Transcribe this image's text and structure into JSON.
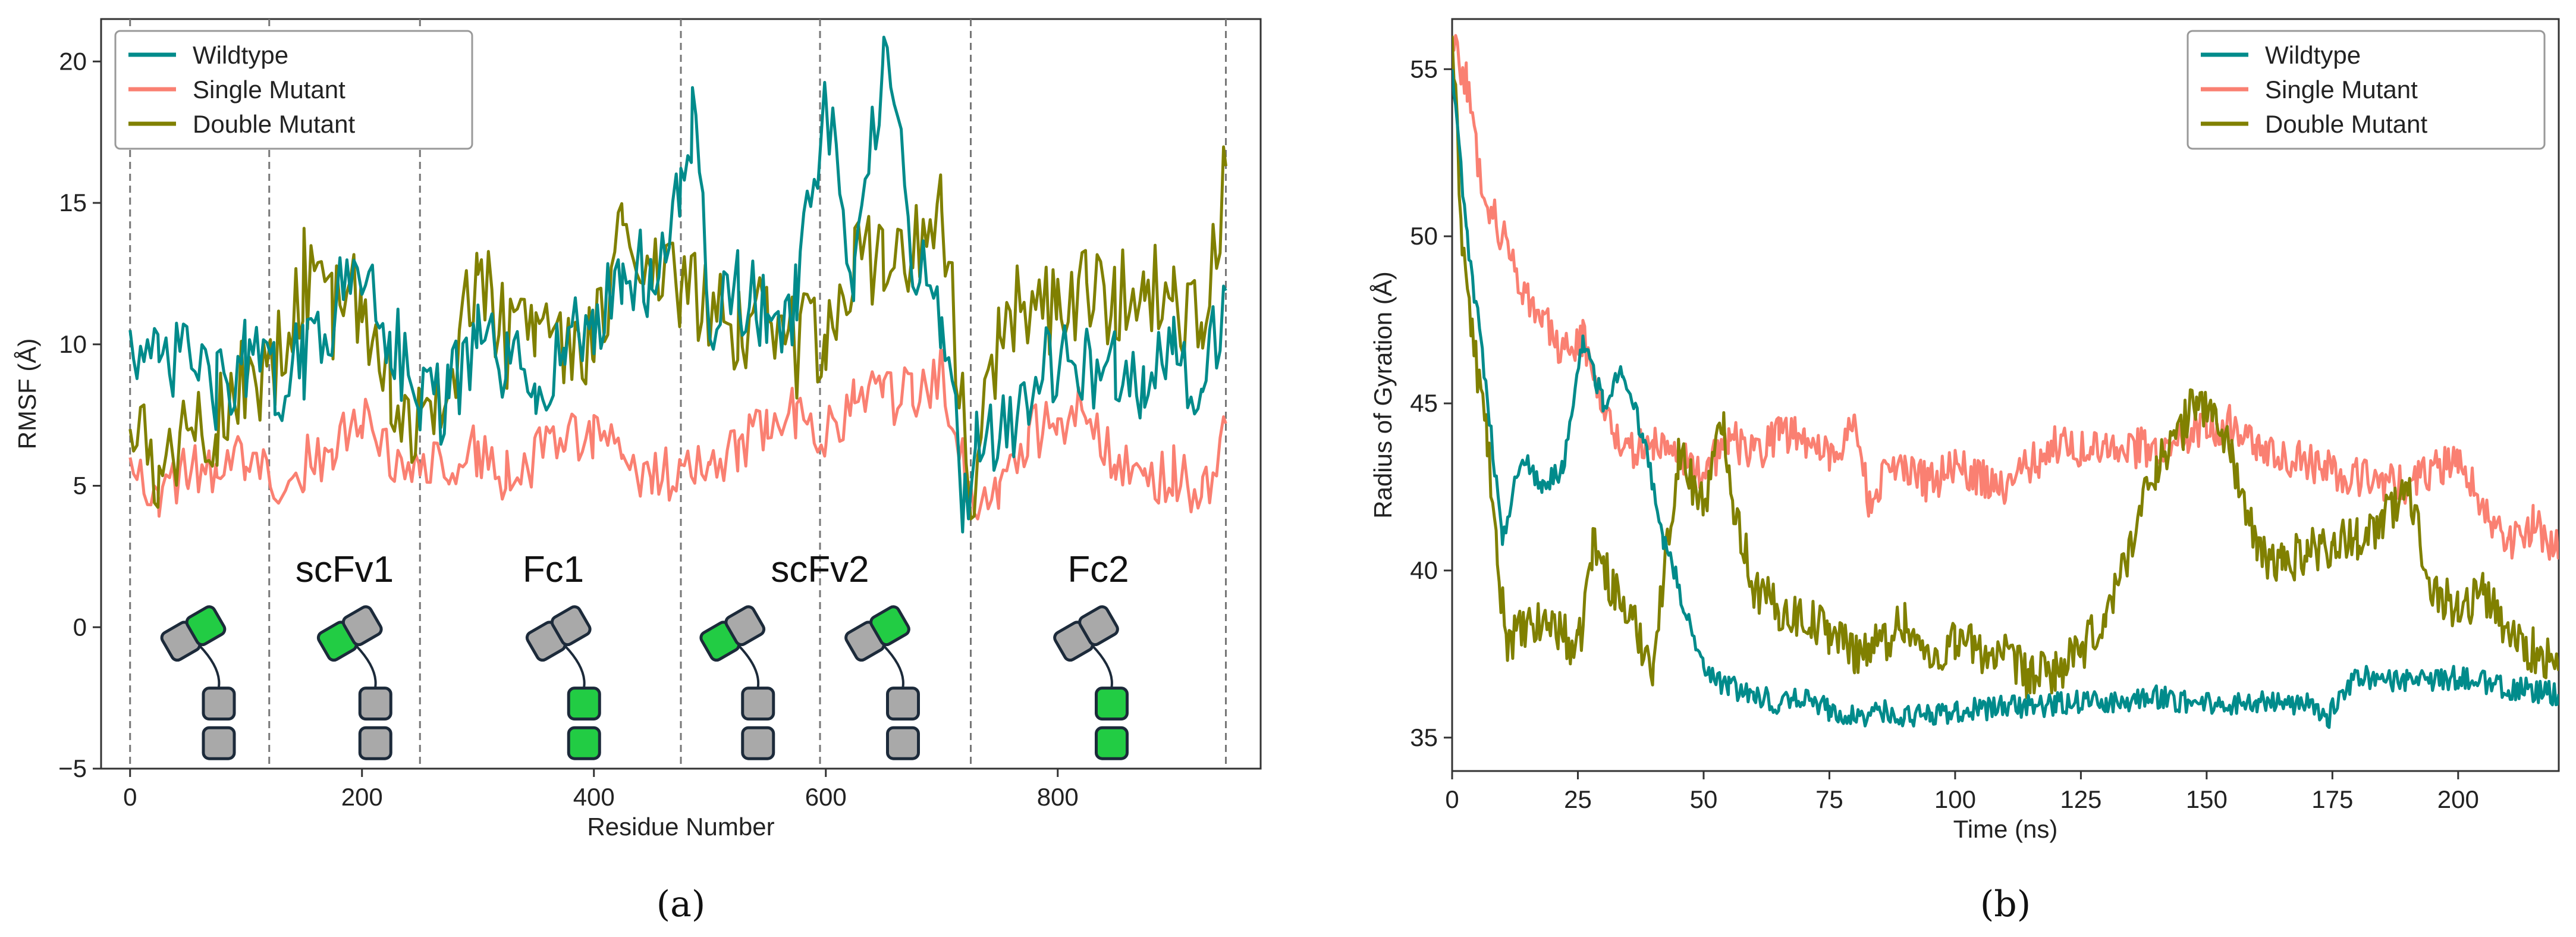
{
  "colors": {
    "wildtype": "#008b8b",
    "single": "#fa8072",
    "double": "#808000",
    "domain_green": "#22cc44",
    "domain_gray": "#a9a9a9",
    "domain_outline": "#1c2a3a"
  },
  "panel_labels": [
    "(a)",
    "(b)"
  ],
  "regions": [
    "scFv1",
    "Fc1",
    "scFv2",
    "Fc2"
  ],
  "chart_data": [
    {
      "id": "a",
      "type": "line",
      "title": "",
      "xlabel": "Residue Number",
      "ylabel": "RMSF (Å)",
      "xlim": [
        -25,
        975
      ],
      "ylim": [
        -5,
        21.5
      ],
      "xticks": [
        0,
        200,
        400,
        600,
        800
      ],
      "yticks": [
        -5,
        0,
        5,
        10,
        15,
        20
      ],
      "legend": "top-left",
      "domain_boundaries": [
        0,
        120,
        250,
        475,
        595,
        725,
        945
      ],
      "region_labels": [
        {
          "text": "scFv1",
          "x": 185
        },
        {
          "text": "Fc1",
          "x": 365
        },
        {
          "text": "scFv2",
          "x": 595
        },
        {
          "text": "Fc2",
          "x": 835
        }
      ],
      "domain_cartoons": [
        {
          "x": 55,
          "green": "upper"
        },
        {
          "x": 190,
          "green": "left"
        },
        {
          "x": 370,
          "green": "lower"
        },
        {
          "x": 520,
          "green": "left"
        },
        {
          "x": 645,
          "green": "right"
        },
        {
          "x": 825,
          "green": "lower"
        }
      ],
      "series": [
        {
          "name": "Wildtype",
          "x": [
            0,
            25,
            50,
            75,
            100,
            125,
            150,
            175,
            200,
            225,
            250,
            275,
            300,
            325,
            350,
            375,
            400,
            425,
            450,
            475,
            485,
            500,
            525,
            550,
            575,
            600,
            625,
            650,
            675,
            700,
            720,
            730,
            750,
            775,
            800,
            825,
            850,
            875,
            900,
            925,
            945
          ],
          "values": [
            10.5,
            8.8,
            9.8,
            8.2,
            9.5,
            8.6,
            9.4,
            11.2,
            12.8,
            10.4,
            8.2,
            8.0,
            10.2,
            9.1,
            8.6,
            10.0,
            10.6,
            12.6,
            12.4,
            15.0,
            18.2,
            10.9,
            12.0,
            10.8,
            11.5,
            18.4,
            11.8,
            20.4,
            13.2,
            11.2,
            4.2,
            7.1,
            6.7,
            8.4,
            9.6,
            9.0,
            9.4,
            8.7,
            9.4,
            8.6,
            11.9
          ]
        },
        {
          "name": "Single Mutant",
          "x": [
            0,
            25,
            50,
            75,
            100,
            125,
            150,
            175,
            200,
            225,
            250,
            275,
            300,
            325,
            350,
            375,
            400,
            425,
            450,
            475,
            500,
            525,
            550,
            575,
            600,
            625,
            650,
            675,
            700,
            725,
            750,
            775,
            800,
            825,
            850,
            875,
            900,
            925,
            945
          ],
          "values": [
            6.0,
            4.8,
            5.6,
            5.3,
            6.1,
            5.2,
            5.8,
            6.4,
            7.3,
            6.1,
            5.6,
            5.9,
            6.3,
            5.3,
            6.0,
            6.6,
            7.0,
            6.0,
            5.2,
            5.5,
            5.4,
            6.5,
            6.8,
            7.6,
            6.7,
            8.2,
            8.0,
            8.4,
            8.9,
            4.6,
            5.1,
            6.8,
            7.3,
            7.7,
            6.0,
            5.1,
            5.5,
            4.6,
            7.2
          ]
        },
        {
          "name": "Double Mutant",
          "x": [
            0,
            25,
            50,
            75,
            100,
            125,
            150,
            175,
            200,
            225,
            250,
            275,
            300,
            325,
            350,
            375,
            400,
            425,
            450,
            475,
            500,
            525,
            550,
            575,
            600,
            625,
            650,
            675,
            700,
            725,
            750,
            775,
            800,
            825,
            850,
            875,
            900,
            925,
            945
          ],
          "values": [
            7.0,
            5.9,
            6.3,
            7.4,
            8.5,
            9.1,
            12.4,
            11.1,
            11.8,
            8.8,
            7.1,
            8.6,
            12.9,
            10.2,
            10.6,
            9.8,
            10.2,
            14.2,
            13.1,
            12.2,
            11.6,
            10.7,
            11.6,
            9.9,
            10.5,
            12.9,
            13.4,
            13.4,
            14.8,
            5.0,
            10.2,
            11.8,
            11.0,
            12.1,
            11.5,
            12.3,
            11.2,
            10.6,
            16.3
          ]
        }
      ]
    },
    {
      "id": "b",
      "type": "line",
      "title": "",
      "xlabel": "Time (ns)",
      "ylabel": "Radius of Gyration (Å)",
      "xlim": [
        0,
        220
      ],
      "ylim": [
        34,
        56.5
      ],
      "xticks": [
        0,
        25,
        50,
        75,
        100,
        125,
        150,
        175,
        200
      ],
      "yticks": [
        35,
        40,
        45,
        50,
        55
      ],
      "legend": "top-right",
      "series": [
        {
          "name": "Wildtype",
          "x": [
            0,
            3,
            6,
            10,
            14,
            18,
            22,
            26,
            30,
            34,
            38,
            42,
            46,
            50,
            55,
            60,
            65,
            70,
            75,
            80,
            85,
            90,
            95,
            100,
            110,
            120,
            130,
            140,
            150,
            160,
            170,
            174,
            176,
            180,
            190,
            200,
            210,
            220
          ],
          "values": [
            55.0,
            50.0,
            46.5,
            41.0,
            43.5,
            42.5,
            43.0,
            47.0,
            45.0,
            46.0,
            44.0,
            41.0,
            39.0,
            37.0,
            36.5,
            36.3,
            36.0,
            36.2,
            35.8,
            35.6,
            35.8,
            35.6,
            35.7,
            35.8,
            35.9,
            36.0,
            36.1,
            36.2,
            36.0,
            36.1,
            36.0,
            35.4,
            36.2,
            36.8,
            36.7,
            36.8,
            36.5,
            36.3
          ]
        },
        {
          "name": "Single Mutant",
          "x": [
            0,
            3,
            6,
            10,
            14,
            18,
            22,
            26,
            30,
            35,
            40,
            45,
            50,
            55,
            60,
            65,
            70,
            75,
            80,
            83,
            86,
            90,
            95,
            100,
            110,
            120,
            130,
            140,
            150,
            155,
            160,
            170,
            180,
            190,
            200,
            205,
            210,
            215,
            220
          ],
          "values": [
            56.0,
            54.5,
            51.5,
            50.0,
            48.5,
            47.5,
            46.5,
            47.0,
            45.0,
            43.5,
            43.8,
            43.6,
            42.8,
            44.0,
            43.4,
            44.2,
            44.0,
            43.4,
            44.4,
            42.0,
            42.8,
            43.0,
            42.6,
            43.1,
            42.5,
            43.8,
            43.6,
            43.7,
            44.2,
            44.4,
            43.6,
            43.2,
            42.8,
            42.5,
            43.4,
            42.0,
            40.8,
            41.4,
            40.6
          ]
        },
        {
          "name": "Double Mutant",
          "x": [
            0,
            2,
            4,
            7,
            9,
            11,
            15,
            20,
            25,
            28,
            32,
            36,
            40,
            45,
            50,
            54,
            56,
            60,
            65,
            70,
            75,
            80,
            85,
            90,
            95,
            100,
            105,
            110,
            115,
            120,
            125,
            130,
            140,
            145,
            148,
            152,
            155,
            160,
            165,
            170,
            175,
            180,
            185,
            190,
            195,
            200,
            205,
            210,
            215,
            220
          ],
          "values": [
            56.0,
            50.0,
            47.0,
            44.0,
            40.0,
            38.0,
            38.2,
            38.5,
            37.5,
            40.8,
            39.5,
            38.4,
            37.2,
            43.5,
            42.0,
            44.5,
            42.0,
            39.5,
            38.8,
            38.6,
            38.2,
            37.6,
            37.8,
            38.5,
            37.2,
            38.0,
            37.6,
            37.4,
            36.8,
            37.0,
            37.5,
            38.6,
            43.2,
            44.2,
            45.2,
            44.5,
            43.5,
            40.5,
            40.2,
            40.6,
            40.8,
            41.0,
            41.5,
            42.4,
            39.5,
            38.8,
            39.4,
            38.2,
            37.6,
            37.0
          ]
        }
      ]
    }
  ]
}
